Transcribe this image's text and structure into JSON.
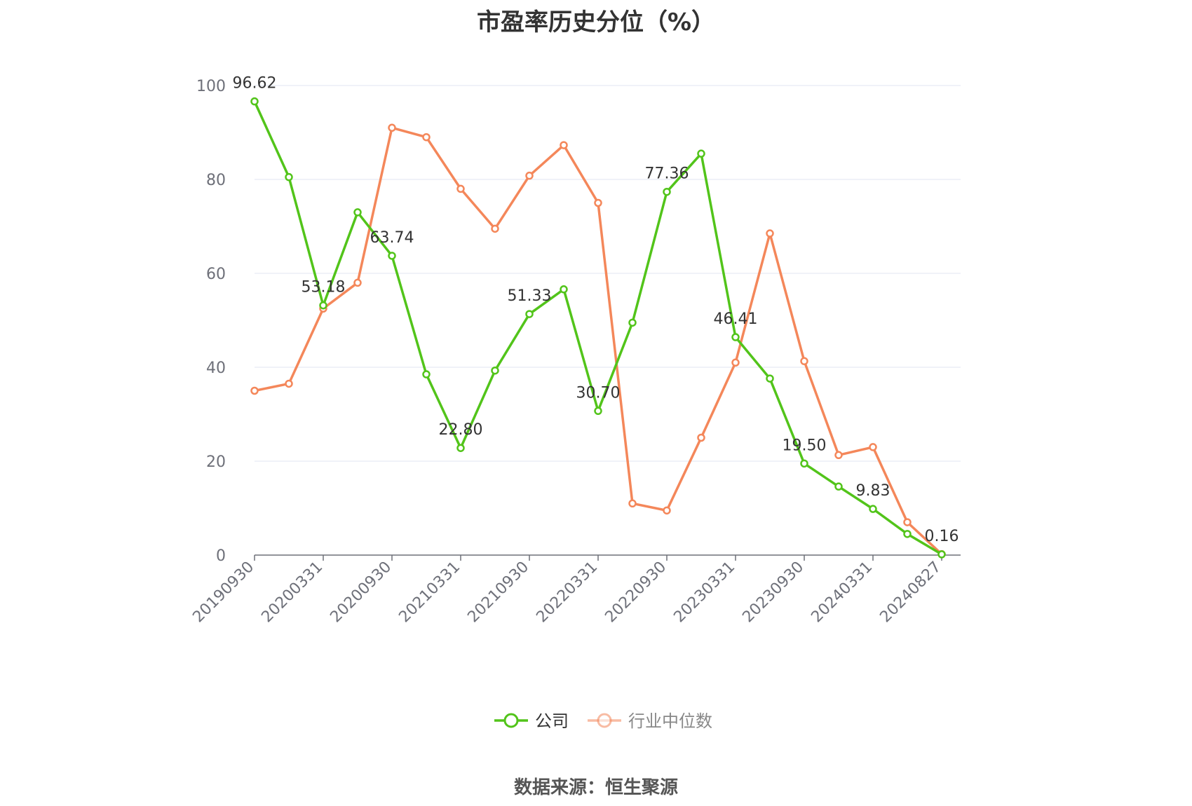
{
  "title": "市盈率历史分位（%）",
  "source": "数据来源：恒生聚源",
  "chart_data": {
    "type": "line",
    "ylim": [
      0,
      100
    ],
    "y_ticks": [
      0,
      20,
      40,
      60,
      80,
      100
    ],
    "grid": true,
    "legend_position": "bottom",
    "x": [
      "20190930",
      "20191231",
      "20200331",
      "20200630",
      "20200930",
      "20201231",
      "20210331",
      "20210630",
      "20210930",
      "20211231",
      "20220331",
      "20220630",
      "20220930",
      "20221231",
      "20230331",
      "20230630",
      "20230930",
      "20231231",
      "20240331",
      "20240630",
      "20240827"
    ],
    "x_tick_labels": [
      "20190930",
      "20200331",
      "20200930",
      "20210331",
      "20210930",
      "20220331",
      "20220930",
      "20230331",
      "20230930",
      "20240331",
      "20240827"
    ],
    "series": [
      {
        "name": "公司",
        "color": "#52c41a",
        "values": [
          96.62,
          80.5,
          53.18,
          73.0,
          63.74,
          38.5,
          22.8,
          39.3,
          51.33,
          56.6,
          30.7,
          49.5,
          77.36,
          85.5,
          46.41,
          37.6,
          19.5,
          14.6,
          9.83,
          4.5,
          0.16
        ],
        "labels": {
          "0": "96.62",
          "2": "53.18",
          "4": "63.74",
          "6": "22.80",
          "8": "51.33",
          "10": "30.70",
          "12": "77.36",
          "14": "46.41",
          "16": "19.50",
          "18": "9.83",
          "20": "0.16"
        }
      },
      {
        "name": "行业中位数",
        "color": "#f4875a",
        "values": [
          35.0,
          36.5,
          52.5,
          58.0,
          91.0,
          89.0,
          78.0,
          69.5,
          80.8,
          87.3,
          75.0,
          11.0,
          9.5,
          25.0,
          41.0,
          68.5,
          41.3,
          21.3,
          23.0,
          7.0,
          0.2
        ]
      }
    ]
  }
}
